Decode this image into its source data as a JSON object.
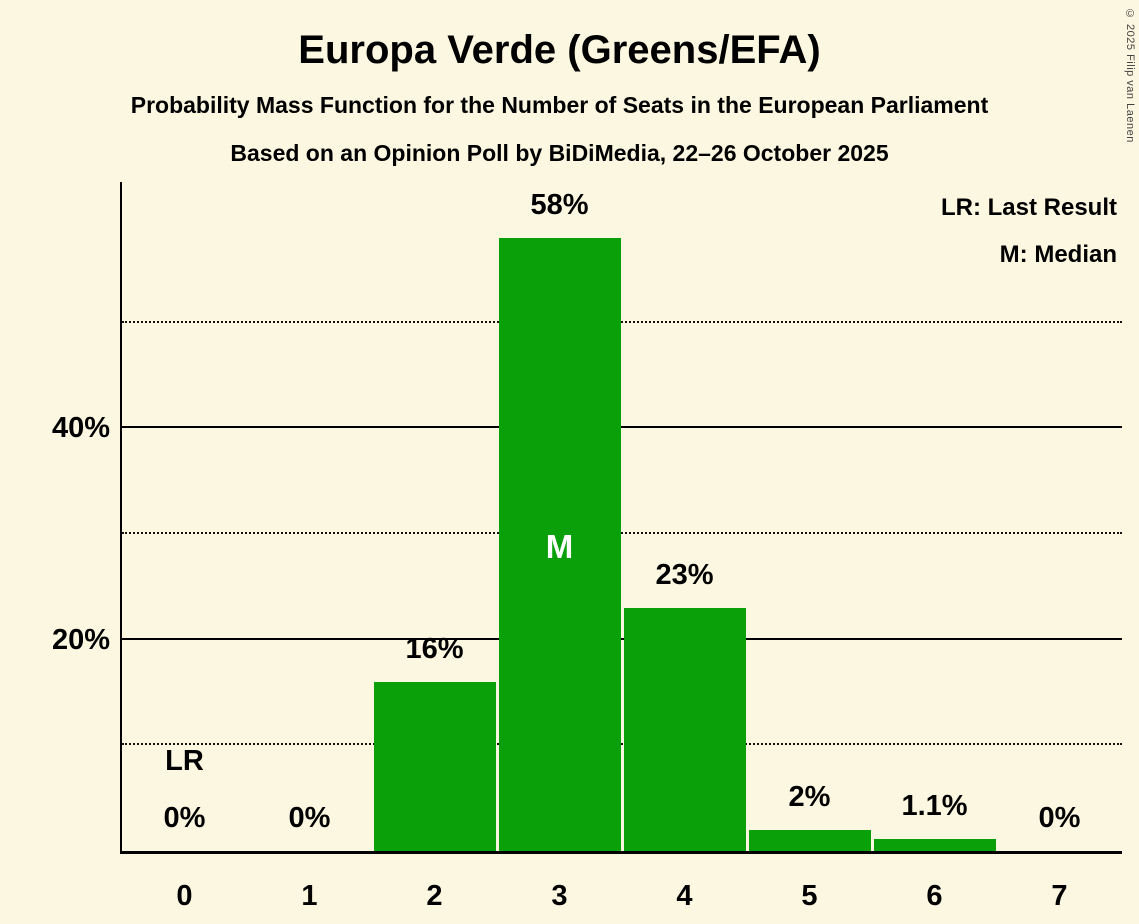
{
  "copyright": "© 2025 Filip van Laenen",
  "legend": [
    "LR: Last Result",
    "M: Median"
  ],
  "chart_data": {
    "type": "bar",
    "title": "Europa Verde (Greens/EFA)",
    "subtitle": "Probability Mass Function for the Number of Seats in the European Parliament",
    "subtitle2": "Based on an Opinion Poll by BiDiMedia, 22–26 October 2025",
    "categories": [
      "0",
      "1",
      "2",
      "3",
      "4",
      "5",
      "6",
      "7"
    ],
    "values": [
      0,
      0,
      16,
      58,
      23,
      2,
      1.1,
      0
    ],
    "value_labels": [
      "0%",
      "0%",
      "16%",
      "58%",
      "23%",
      "2%",
      "1.1%",
      "0%"
    ],
    "xlabel": "",
    "ylabel": "",
    "ylim": [
      0,
      63.3
    ],
    "yticks": [
      {
        "value": 20,
        "label": "20%"
      },
      {
        "value": 40,
        "label": "40%"
      }
    ],
    "solid_gridlines": [
      20,
      40
    ],
    "dotted_gridlines": [
      10,
      30,
      50
    ],
    "grid": "horizontal",
    "legend_position": "top-right",
    "bar_color": "#0aa00a",
    "background_color": "#fbf7e0",
    "median_category": "3",
    "median_label": "M",
    "last_result_category": "0",
    "last_result_label": "LR"
  }
}
